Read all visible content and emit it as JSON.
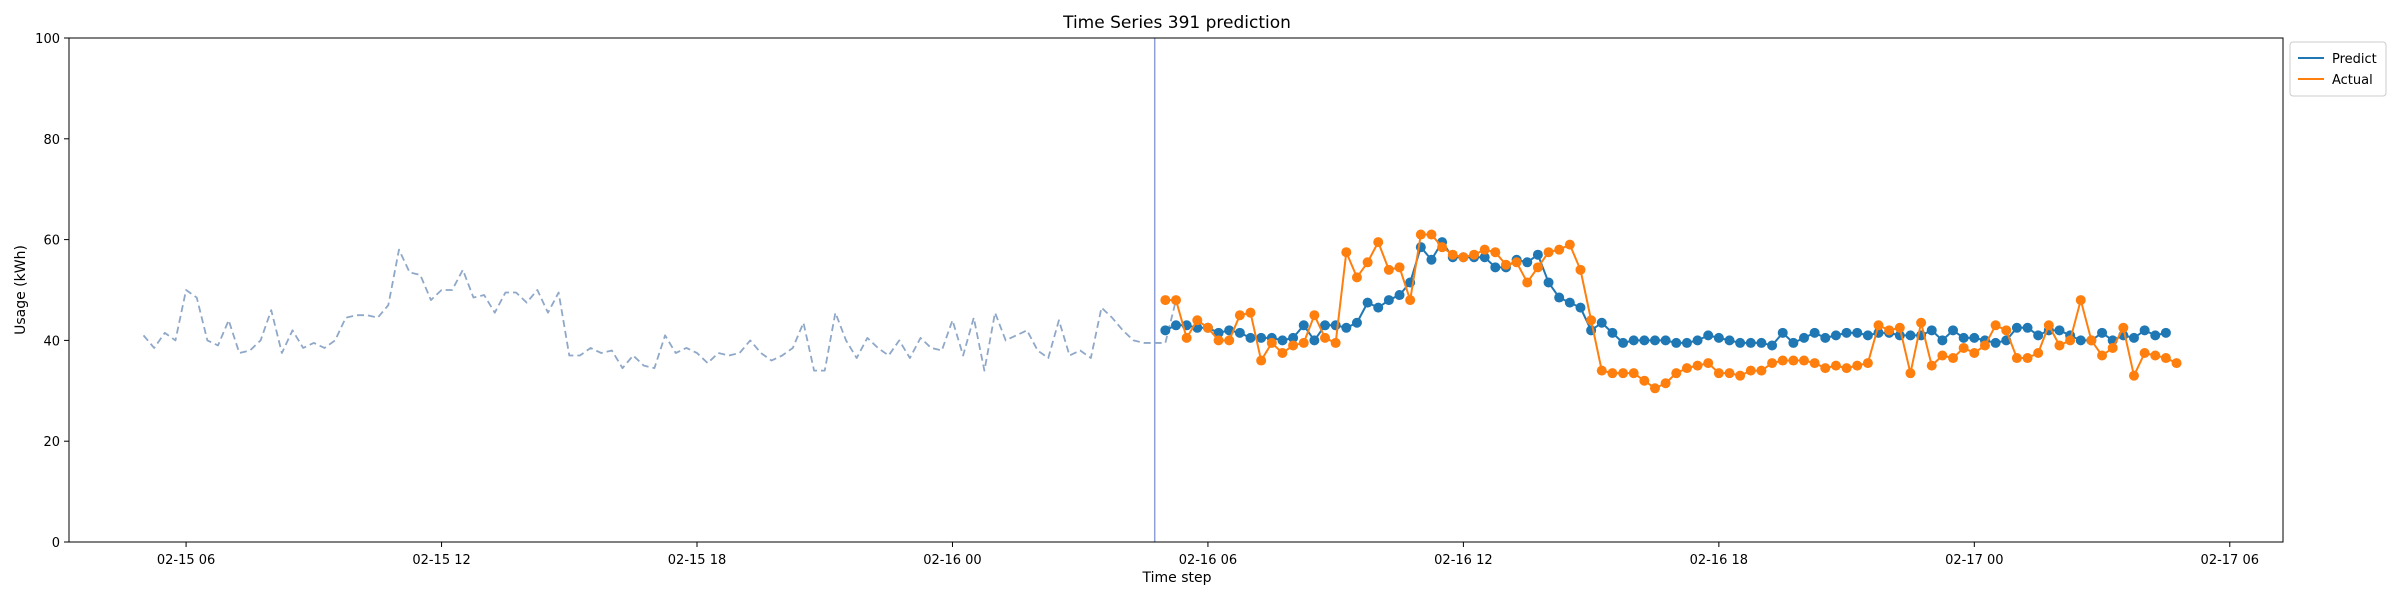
{
  "chart_data": {
    "type": "line",
    "title": "Time Series 391 prediction",
    "xlabel": "Time step",
    "ylabel": "Usage (kWh)",
    "ylim": [
      0,
      100
    ],
    "yticks": [
      0,
      20,
      40,
      60,
      80,
      100
    ],
    "xlim": [
      "2025-02-15 03:15",
      "2025-02-17 07:15"
    ],
    "xticks": [
      {
        "t": "2025-02-15 06:00",
        "label": "02-15 06"
      },
      {
        "t": "2025-02-15 12:00",
        "label": "02-15 12"
      },
      {
        "t": "2025-02-15 18:00",
        "label": "02-15 18"
      },
      {
        "t": "2025-02-16 00:00",
        "label": "02-16 00"
      },
      {
        "t": "2025-02-16 06:00",
        "label": "02-16 06"
      },
      {
        "t": "2025-02-16 12:00",
        "label": "02-16 12"
      },
      {
        "t": "2025-02-16 18:00",
        "label": "02-16 18"
      },
      {
        "t": "2025-02-17 00:00",
        "label": "02-17 00"
      },
      {
        "t": "2025-02-17 06:00",
        "label": "02-17 06"
      }
    ],
    "interval_minutes": 15,
    "split_time": "2025-02-16 04:45",
    "legend": {
      "placement": "top-right, outside plot"
    },
    "grid": false,
    "series": [
      {
        "name": "",
        "role": "history",
        "color": "#8fa8c8",
        "style": "dashed",
        "start": "2025-02-15 05:00",
        "values": [
          41,
          38.5,
          41.5,
          40,
          50,
          48.5,
          40,
          39,
          44,
          37.5,
          38,
          40,
          46,
          37.5,
          42,
          38.5,
          39.5,
          38.5,
          40,
          44.5,
          45,
          45,
          44.5,
          47,
          58,
          53.5,
          53,
          48,
          50,
          50,
          54,
          48.5,
          49,
          45.5,
          49.5,
          49.5,
          47.5,
          50,
          45.5,
          49.5,
          37,
          37,
          38.5,
          37.5,
          38,
          34.5,
          37,
          35,
          34.5,
          41,
          37.5,
          38.5,
          37.5,
          35.5,
          37.5,
          37,
          37.5,
          40,
          37.5,
          36,
          37,
          38.5,
          43.5,
          34,
          34,
          45.5,
          40,
          36.5,
          40.5,
          38.5,
          37,
          40,
          36.5,
          40.5,
          38.5,
          38,
          44,
          37,
          44.5,
          34,
          45.5,
          40,
          41,
          42,
          38,
          36.5,
          44,
          37,
          38,
          36.5,
          46.5,
          44.5,
          42,
          40,
          39.5,
          39.5,
          39.5,
          48
        ]
      },
      {
        "name": "Predict",
        "color": "#1f77b4",
        "style": "solid-markers",
        "start": "2025-02-16 05:00",
        "values": [
          42,
          43,
          43,
          42.5,
          42.5,
          41.5,
          42,
          41.5,
          40.5,
          40.5,
          40.5,
          40,
          40.5,
          43,
          40,
          43,
          43,
          42.5,
          43.5,
          47.5,
          46.5,
          48,
          49,
          51.5,
          58.5,
          56,
          59.5,
          56.5,
          56.5,
          56.5,
          56.5,
          54.5,
          54.5,
          56,
          55.5,
          57,
          51.5,
          48.5,
          47.5,
          46.5,
          42,
          43.5,
          41.5,
          39.5,
          40,
          40,
          40,
          40,
          39.5,
          39.5,
          40,
          41,
          40.5,
          40,
          39.5,
          39.5,
          39.5,
          39,
          41.5,
          39.5,
          40.5,
          41.5,
          40.5,
          41,
          41.5,
          41.5,
          41,
          41.5,
          41.5,
          41,
          41,
          41,
          42,
          40,
          42,
          40.5,
          40.5,
          40,
          39.5,
          40,
          42.5,
          42.5,
          41,
          42,
          42,
          41,
          40,
          40,
          41.5,
          40,
          41,
          40.5,
          42,
          41,
          41.5
        ]
      },
      {
        "name": "Actual",
        "color": "#ff7f0e",
        "style": "solid-markers",
        "start": "2025-02-16 05:00",
        "values": [
          48,
          48,
          40.5,
          44,
          42.5,
          40,
          40,
          45,
          45.5,
          36,
          39.5,
          37.5,
          39,
          39.5,
          45,
          40.5,
          39.5,
          57.5,
          52.5,
          55.5,
          59.5,
          54,
          54.5,
          48,
          61,
          61,
          58.5,
          57,
          56.5,
          57,
          58,
          57.5,
          55,
          55.5,
          51.5,
          54.5,
          57.5,
          58,
          59,
          54,
          44,
          34,
          33.5,
          33.5,
          33.5,
          32,
          30.5,
          31.5,
          33.5,
          34.5,
          35,
          35.5,
          33.5,
          33.5,
          33,
          34,
          34,
          35.5,
          36,
          36,
          36,
          35.5,
          34.5,
          35,
          34.5,
          35,
          35.5,
          43,
          42,
          42.5,
          33.5,
          43.5,
          35,
          37,
          36.5,
          38.5,
          37.5,
          39,
          43,
          42,
          36.5,
          36.5,
          37.5,
          43,
          39,
          40,
          48,
          40,
          37,
          38.5,
          42.5,
          33,
          37.5,
          37,
          36.5,
          35.5
        ]
      }
    ]
  }
}
